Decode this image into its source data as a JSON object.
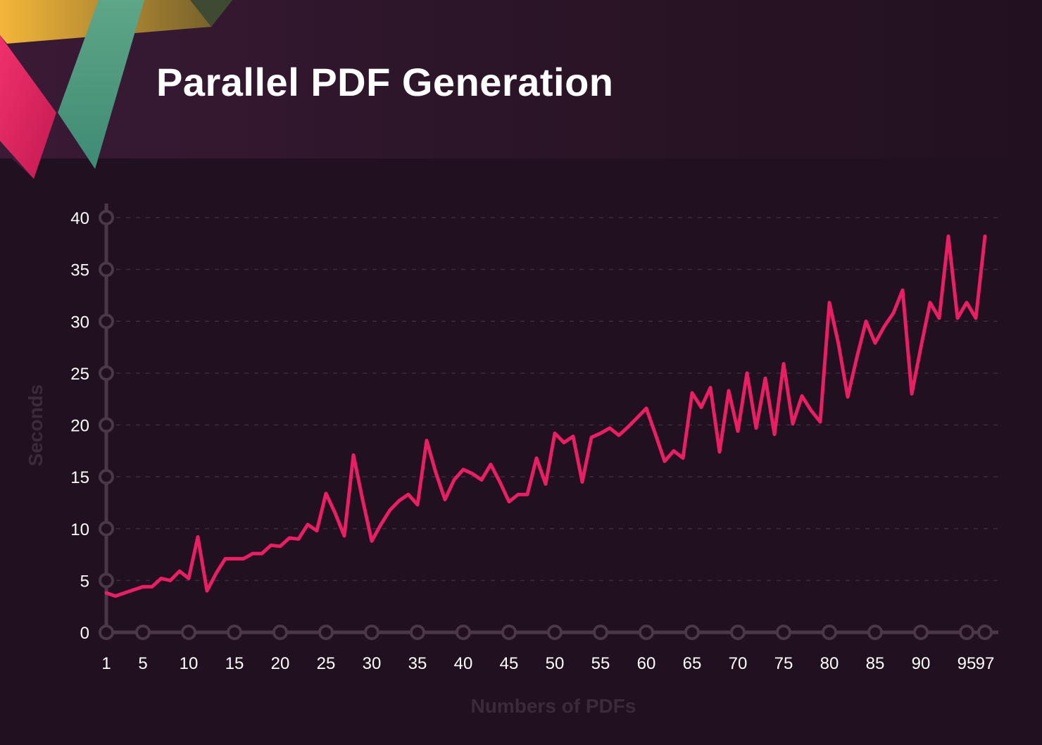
{
  "header": {
    "title": "Parallel PDF Generation"
  },
  "colors": {
    "background": "#21101f",
    "line": "#e91e63",
    "axis": "#4a3848",
    "grid": "#3e2c3c",
    "tick_text": "#ffffff",
    "axis_title": "#3b2a3a"
  },
  "chart_data": {
    "type": "line",
    "title": "",
    "xlabel": "Numbers of PDFs",
    "ylabel": "Seconds",
    "xlim": [
      1,
      97
    ],
    "ylim": [
      0,
      40
    ],
    "grid": true,
    "x_ticks": [
      1,
      5,
      10,
      15,
      20,
      25,
      30,
      35,
      40,
      45,
      50,
      55,
      60,
      65,
      70,
      75,
      80,
      85,
      90,
      95,
      97
    ],
    "y_ticks": [
      0,
      5,
      10,
      15,
      20,
      25,
      30,
      35,
      40
    ],
    "series": [
      {
        "name": "",
        "x": [
          1,
          2,
          3,
          4,
          5,
          6,
          7,
          8,
          9,
          10,
          11,
          12,
          13,
          14,
          15,
          16,
          17,
          18,
          19,
          20,
          21,
          22,
          23,
          24,
          25,
          26,
          27,
          28,
          29,
          30,
          31,
          32,
          33,
          34,
          35,
          36,
          37,
          38,
          39,
          40,
          41,
          42,
          43,
          44,
          45,
          46,
          47,
          48,
          49,
          50,
          51,
          52,
          53,
          54,
          55,
          56,
          57,
          58,
          59,
          60,
          61,
          62,
          63,
          64,
          65,
          66,
          67,
          68,
          69,
          70,
          71,
          72,
          73,
          74,
          75,
          76,
          77,
          78,
          79,
          80,
          81,
          82,
          83,
          84,
          85,
          86,
          87,
          88,
          89,
          90,
          91,
          92,
          93,
          94,
          95,
          96,
          97
        ],
        "values": [
          3.8,
          3.5,
          3.8,
          4.1,
          4.4,
          4.4,
          5.2,
          5.0,
          5.9,
          5.2,
          9.2,
          4.0,
          5.7,
          7.1,
          7.1,
          7.1,
          7.6,
          7.6,
          8.4,
          8.3,
          9.1,
          9.0,
          10.4,
          9.8,
          13.4,
          11.5,
          9.3,
          17.1,
          12.8,
          8.8,
          10.4,
          11.8,
          12.7,
          13.3,
          12.3,
          18.5,
          15.4,
          12.8,
          14.7,
          15.7,
          15.3,
          14.7,
          16.2,
          14.5,
          12.6,
          13.3,
          13.3,
          16.8,
          14.3,
          19.2,
          18.3,
          18.9,
          14.5,
          18.8,
          19.2,
          19.7,
          19.0,
          19.8,
          20.7,
          21.6,
          19.1,
          16.5,
          17.5,
          16.8,
          23.1,
          21.7,
          23.6,
          17.4,
          23.3,
          19.4,
          25.0,
          19.7,
          24.5,
          19.1,
          25.9,
          20.1,
          22.8,
          21.4,
          20.3,
          31.8,
          27.8,
          22.7,
          26.5,
          30.0,
          27.9,
          29.5,
          30.8,
          33.0,
          23.0,
          27.5,
          31.8,
          30.3,
          38.2,
          30.3,
          31.8,
          30.3,
          38.2
        ]
      }
    ]
  }
}
